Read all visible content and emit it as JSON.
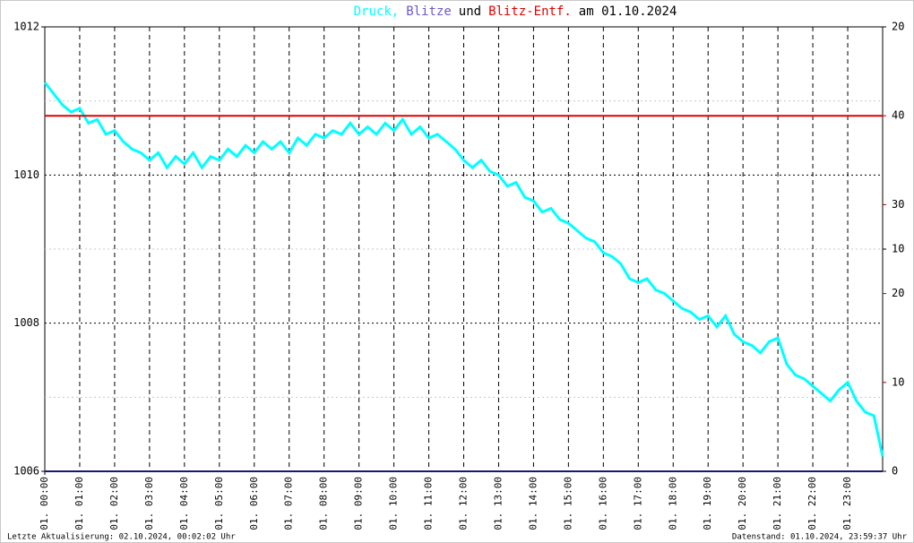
{
  "chart_data": {
    "type": "line",
    "title_joiner": "und",
    "title_date": "am 01.10.2024",
    "footer_left": "Letzte Aktualisierung: 02.10.2024, 00:02:02 Uhr",
    "footer_right": "Datenstand: 01.10.2024, 23:59:37 Uhr",
    "xlim": [
      0,
      24
    ],
    "xticks": [
      {
        "value": 0,
        "label": "01. 00:00"
      },
      {
        "value": 1,
        "label": "01. 01:00"
      },
      {
        "value": 2,
        "label": "01. 02:00"
      },
      {
        "value": 3,
        "label": "01. 03:00"
      },
      {
        "value": 4,
        "label": "01. 04:00"
      },
      {
        "value": 5,
        "label": "01. 05:00"
      },
      {
        "value": 6,
        "label": "01. 06:00"
      },
      {
        "value": 7,
        "label": "01. 07:00"
      },
      {
        "value": 8,
        "label": "01. 08:00"
      },
      {
        "value": 9,
        "label": "01. 09:00"
      },
      {
        "value": 10,
        "label": "01. 10:00"
      },
      {
        "value": 11,
        "label": "01. 11:00"
      },
      {
        "value": 12,
        "label": "01. 12:00"
      },
      {
        "value": 13,
        "label": "01. 13:00"
      },
      {
        "value": 14,
        "label": "01. 14:00"
      },
      {
        "value": 15,
        "label": "01. 15:00"
      },
      {
        "value": 16,
        "label": "01. 16:00"
      },
      {
        "value": 17,
        "label": "01. 17:00"
      },
      {
        "value": 18,
        "label": "01. 18:00"
      },
      {
        "value": 19,
        "label": "01. 19:00"
      },
      {
        "value": 20,
        "label": "01. 20:00"
      },
      {
        "value": 21,
        "label": "01. 21:00"
      },
      {
        "value": 22,
        "label": "01. 22:00"
      },
      {
        "value": 23,
        "label": "01. 23:00"
      }
    ],
    "ylim": [
      1006,
      1012
    ],
    "yticks": [
      1006,
      1008,
      1010,
      1012
    ],
    "yminor": [
      1007,
      1009,
      1011
    ],
    "y2lim": [
      0,
      20
    ],
    "y2ticks": [
      0,
      10,
      20
    ],
    "y3lim": [
      0,
      50
    ],
    "y3ticks": [
      10,
      20,
      30,
      40
    ],
    "y3color": "#b00000",
    "series": [
      {
        "name": "Druck,",
        "color": "#00ffff",
        "x": [
          0,
          0.25,
          0.5,
          0.75,
          1,
          1.25,
          1.5,
          1.75,
          2,
          2.25,
          2.5,
          2.75,
          3,
          3.25,
          3.5,
          3.75,
          4,
          4.25,
          4.5,
          4.75,
          5,
          5.25,
          5.5,
          5.75,
          6,
          6.25,
          6.5,
          6.75,
          7,
          7.25,
          7.5,
          7.75,
          8,
          8.25,
          8.5,
          8.75,
          9,
          9.25,
          9.5,
          9.75,
          10,
          10.25,
          10.5,
          10.75,
          11,
          11.25,
          11.5,
          11.75,
          12,
          12.25,
          12.5,
          12.75,
          13,
          13.25,
          13.5,
          13.75,
          14,
          14.25,
          14.5,
          14.75,
          15,
          15.25,
          15.5,
          15.75,
          16,
          16.25,
          16.5,
          16.75,
          17,
          17.25,
          17.5,
          17.75,
          18,
          18.25,
          18.5,
          18.75,
          19,
          19.25,
          19.5,
          19.75,
          20,
          20.25,
          20.5,
          20.75,
          21,
          21.25,
          21.5,
          21.75,
          22,
          22.25,
          22.5,
          22.75,
          23,
          23.25,
          23.5,
          23.75,
          24
        ],
        "values": [
          1011.25,
          1011.1,
          1010.95,
          1010.85,
          1010.9,
          1010.7,
          1010.75,
          1010.55,
          1010.6,
          1010.45,
          1010.35,
          1010.3,
          1010.2,
          1010.3,
          1010.1,
          1010.25,
          1010.15,
          1010.3,
          1010.1,
          1010.25,
          1010.2,
          1010.35,
          1010.25,
          1010.4,
          1010.3,
          1010.45,
          1010.35,
          1010.45,
          1010.3,
          1010.5,
          1010.4,
          1010.55,
          1010.5,
          1010.6,
          1010.55,
          1010.7,
          1010.55,
          1010.65,
          1010.55,
          1010.7,
          1010.6,
          1010.75,
          1010.55,
          1010.65,
          1010.5,
          1010.55,
          1010.45,
          1010.35,
          1010.2,
          1010.1,
          1010.2,
          1010.05,
          1010.0,
          1009.85,
          1009.9,
          1009.7,
          1009.65,
          1009.5,
          1009.55,
          1009.4,
          1009.35,
          1009.25,
          1009.15,
          1009.1,
          1008.95,
          1008.9,
          1008.8,
          1008.6,
          1008.55,
          1008.6,
          1008.45,
          1008.4,
          1008.3,
          1008.2,
          1008.15,
          1008.05,
          1008.1,
          1007.95,
          1008.1,
          1007.85,
          1007.75,
          1007.7,
          1007.6,
          1007.75,
          1007.8,
          1007.45,
          1007.3,
          1007.25,
          1007.15,
          1007.05,
          1006.95,
          1007.1,
          1007.2,
          1006.95,
          1006.8,
          1006.75,
          1006.2
        ]
      },
      {
        "name": "Blitze",
        "color": "#6a5acd",
        "line_color": "#191970",
        "axis": "y2",
        "x": [
          0,
          24
        ],
        "values": [
          0,
          0
        ]
      },
      {
        "name": "Blitz-Entf.",
        "color": "#e00000",
        "axis": "y3",
        "x": [
          0,
          24
        ],
        "values": [
          40,
          40
        ]
      }
    ]
  }
}
